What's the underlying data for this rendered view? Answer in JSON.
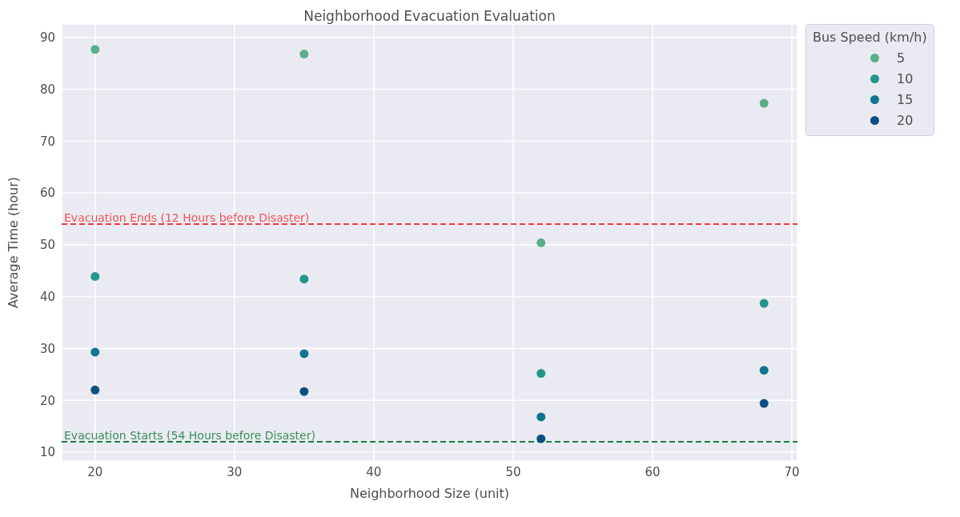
{
  "chart_data": {
    "type": "scatter",
    "title": "Neighborhood Evacuation Evaluation",
    "xlabel": "Neighborhood Size (unit)",
    "ylabel": "Average Time (hour)",
    "legend_title": "Bus Speed (km/h)",
    "x": [
      20,
      35,
      52,
      68
    ],
    "series": [
      {
        "name": "5",
        "color": "#5aae8a",
        "values": [
          87.7,
          86.8,
          50.4,
          77.3
        ]
      },
      {
        "name": "10",
        "color": "#22968c",
        "values": [
          43.9,
          43.4,
          25.2,
          38.7
        ]
      },
      {
        "name": "15",
        "color": "#10758f",
        "values": [
          29.3,
          29.0,
          16.8,
          25.8
        ]
      },
      {
        "name": "20",
        "color": "#0b4f80",
        "values": [
          22.0,
          21.7,
          12.6,
          19.4
        ]
      }
    ],
    "xlim": [
      17.6,
      70.4
    ],
    "xticks": [
      20,
      30,
      40,
      50,
      60,
      70
    ],
    "ylim": [
      8.3,
      92.6
    ],
    "yticks": [
      10,
      20,
      30,
      40,
      50,
      60,
      70,
      80,
      90
    ],
    "ref_lines": [
      {
        "axis": "y",
        "value": 54,
        "label": "Evacuation Ends (12 Hours before Disaster)",
        "color": "#f03c3c",
        "line_style": "dashed"
      },
      {
        "axis": "y",
        "value": 12,
        "label": "Evacuation Starts (54 Hours before Disaster)",
        "color": "#1a7f3c",
        "line_style": "dashed"
      }
    ],
    "grid": true,
    "legend": "top right",
    "marker": "circle"
  }
}
